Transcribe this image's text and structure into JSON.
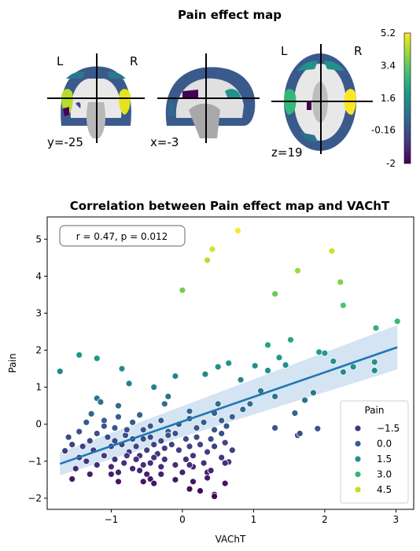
{
  "brain_panel": {
    "title": "Pain effect map",
    "orientation_left": "L",
    "orientation_right": "R",
    "coords": [
      "y=-25",
      "x=-3",
      "z=19"
    ],
    "colorbar": {
      "colormap": "viridis",
      "range": [
        -2,
        5.2
      ],
      "tick_labels": [
        "5.2",
        "3.4",
        "1.6",
        "-0.16",
        "-2"
      ],
      "tick_values": [
        5.2,
        3.4,
        1.6,
        -0.16,
        -2
      ]
    }
  },
  "chart_data": {
    "type": "scatter",
    "title": "Correlation between Pain effect map and VAChT",
    "xlabel": "VAChT",
    "ylabel": "Pain",
    "xlim": [
      -1.9,
      3.25
    ],
    "ylim": [
      -2.3,
      5.6
    ],
    "xticks": [
      -1,
      0,
      1,
      2,
      3
    ],
    "yticks": [
      -2,
      -1,
      0,
      1,
      2,
      3,
      4,
      5
    ],
    "annotation": "r = 0.47, p = 0.012",
    "legend": {
      "title": "Pain",
      "position": "lower-right",
      "entries": [
        {
          "label": "−1.5",
          "value": -1.5,
          "color": "#46327e"
        },
        {
          "label": "0.0",
          "value": 0.0,
          "color": "#365c8d"
        },
        {
          "label": "1.5",
          "value": 1.5,
          "color": "#21918c"
        },
        {
          "label": "3.0",
          "value": 3.0,
          "color": "#35b779"
        },
        {
          "label": "4.5",
          "value": 4.5,
          "color": "#bddf26"
        }
      ]
    },
    "hue_range": [
      -2,
      5.2
    ],
    "regression": {
      "x": [
        -1.72,
        3.02
      ],
      "y": [
        -1.07,
        2.08
      ],
      "ci_low": [
        -1.38,
        1.48
      ],
      "ci_high": [
        -0.76,
        2.68
      ],
      "color": "#1f77b4",
      "ci_color": "#c6dbef"
    },
    "points": [
      [
        -1.72,
        1.43
      ],
      [
        -1.45,
        1.87
      ],
      [
        -1.2,
        1.78
      ],
      [
        -0.85,
        1.5
      ],
      [
        -0.75,
        1.1
      ],
      [
        -0.4,
        1.0
      ],
      [
        -0.2,
        0.75
      ],
      [
        -0.1,
        1.3
      ],
      [
        0.0,
        3.62
      ],
      [
        0.35,
        4.43
      ],
      [
        0.42,
        4.73
      ],
      [
        0.78,
        5.23
      ],
      [
        1.3,
        3.52
      ],
      [
        1.62,
        4.15
      ],
      [
        2.1,
        4.68
      ],
      [
        2.22,
        3.84
      ],
      [
        2.26,
        3.21
      ],
      [
        1.2,
        2.14
      ],
      [
        1.52,
        2.28
      ],
      [
        1.36,
        1.8
      ],
      [
        1.45,
        1.6
      ],
      [
        1.92,
        1.95
      ],
      [
        2.0,
        1.92
      ],
      [
        2.12,
        1.7
      ],
      [
        2.7,
        1.68
      ],
      [
        2.72,
        2.6
      ],
      [
        3.02,
        2.78
      ],
      [
        2.26,
        1.41
      ],
      [
        2.4,
        1.55
      ],
      [
        2.7,
        1.45
      ],
      [
        0.32,
        1.35
      ],
      [
        0.65,
        1.65
      ],
      [
        1.02,
        1.58
      ],
      [
        1.2,
        1.45
      ],
      [
        0.5,
        1.55
      ],
      [
        0.82,
        1.2
      ],
      [
        1.1,
        0.9
      ],
      [
        1.3,
        0.75
      ],
      [
        1.72,
        0.65
      ],
      [
        1.84,
        0.85
      ],
      [
        0.95,
        0.55
      ],
      [
        0.85,
        0.4
      ],
      [
        -1.35,
        0.05
      ],
      [
        -1.28,
        0.28
      ],
      [
        -1.1,
        0.1
      ],
      [
        -0.95,
        -0.1
      ],
      [
        -0.9,
        0.2
      ],
      [
        -0.7,
        0.05
      ],
      [
        -0.6,
        0.25
      ],
      [
        -0.55,
        -0.15
      ],
      [
        -0.45,
        -0.05
      ],
      [
        -0.3,
        0.1
      ],
      [
        -0.2,
        -0.2
      ],
      [
        -0.05,
        0.0
      ],
      [
        0.1,
        0.15
      ],
      [
        0.2,
        -0.1
      ],
      [
        0.3,
        0.05
      ],
      [
        0.45,
        0.3
      ],
      [
        0.55,
        0.1
      ],
      [
        0.62,
        -0.05
      ],
      [
        0.7,
        0.2
      ],
      [
        0.55,
        -0.25
      ],
      [
        1.3,
        -0.1
      ],
      [
        1.58,
        0.3
      ],
      [
        1.62,
        -0.3
      ],
      [
        1.9,
        -0.12
      ],
      [
        1.65,
        -0.25
      ],
      [
        -1.2,
        0.7
      ],
      [
        -1.15,
        0.6
      ],
      [
        -0.9,
        0.5
      ],
      [
        -0.25,
        0.55
      ],
      [
        0.1,
        0.35
      ],
      [
        0.5,
        0.55
      ],
      [
        -1.6,
        -0.35
      ],
      [
        -1.55,
        -0.55
      ],
      [
        -1.4,
        -0.6
      ],
      [
        -1.3,
        -0.45
      ],
      [
        -1.25,
        -0.7
      ],
      [
        -1.2,
        -0.25
      ],
      [
        -1.05,
        -0.35
      ],
      [
        -1.0,
        -0.6
      ],
      [
        -0.95,
        -0.45
      ],
      [
        -0.85,
        -0.55
      ],
      [
        -0.8,
        -0.3
      ],
      [
        -0.75,
        -0.75
      ],
      [
        -0.7,
        -0.4
      ],
      [
        -0.65,
        -0.6
      ],
      [
        -0.6,
        -0.85
      ],
      [
        -0.55,
        -0.4
      ],
      [
        -0.5,
        -0.7
      ],
      [
        -0.45,
        -0.35
      ],
      [
        -0.4,
        -0.55
      ],
      [
        -0.35,
        -0.8
      ],
      [
        -0.3,
        -0.45
      ],
      [
        -0.25,
        -0.65
      ],
      [
        -0.2,
        -0.3
      ],
      [
        -0.15,
        -0.55
      ],
      [
        -0.1,
        -0.25
      ],
      [
        -0.05,
        -0.7
      ],
      [
        0.05,
        -0.4
      ],
      [
        0.1,
        -0.6
      ],
      [
        0.15,
        -0.85
      ],
      [
        0.2,
        -0.35
      ],
      [
        0.25,
        -0.55
      ],
      [
        0.35,
        -0.75
      ],
      [
        0.4,
        -0.4
      ],
      [
        0.45,
        -0.6
      ],
      [
        0.55,
        -0.9
      ],
      [
        0.6,
        -0.5
      ],
      [
        0.65,
        -1.02
      ],
      [
        0.7,
        -0.7
      ],
      [
        -1.5,
        -1.2
      ],
      [
        -1.45,
        -0.9
      ],
      [
        -1.35,
        -1.0
      ],
      [
        -1.2,
        -1.1
      ],
      [
        -1.1,
        -0.85
      ],
      [
        -1.0,
        -1.15
      ],
      [
        -0.95,
        -0.95
      ],
      [
        -0.9,
        -1.3
      ],
      [
        -0.82,
        -1.05
      ],
      [
        -0.78,
        -0.85
      ],
      [
        -0.7,
        -1.2
      ],
      [
        -0.65,
        -0.95
      ],
      [
        -0.55,
        -1.1
      ],
      [
        -0.5,
        -1.35
      ],
      [
        -0.45,
        -1.05
      ],
      [
        -0.4,
        -0.9
      ],
      [
        -0.3,
        -1.15
      ],
      [
        -0.25,
        -0.95
      ],
      [
        -0.1,
        -1.1
      ],
      [
        0.0,
        -1.3
      ],
      [
        0.05,
        -0.95
      ],
      [
        0.15,
        -1.15
      ],
      [
        0.3,
        -1.05
      ],
      [
        0.35,
        -1.3
      ],
      [
        0.6,
        -1.05
      ],
      [
        -1.45,
        -0.2
      ],
      [
        -1.65,
        -0.72
      ],
      [
        -1.1,
        -0.05
      ],
      [
        -0.78,
        -0.15
      ],
      [
        0.45,
        -0.15
      ],
      [
        -1.55,
        -1.48
      ],
      [
        -1.3,
        -1.35
      ],
      [
        -1.0,
        -1.35
      ],
      [
        -0.9,
        -1.55
      ],
      [
        -0.6,
        -1.25
      ],
      [
        -0.55,
        -1.55
      ],
      [
        -0.45,
        -1.48
      ],
      [
        -0.4,
        -1.6
      ],
      [
        -0.3,
        -1.35
      ],
      [
        -0.1,
        -1.5
      ],
      [
        0.1,
        -1.75
      ],
      [
        0.25,
        -1.8
      ],
      [
        0.45,
        -1.9
      ],
      [
        0.6,
        -1.6
      ],
      [
        0.1,
        -1.1
      ],
      [
        0.35,
        -1.45
      ],
      [
        0.15,
        -1.55
      ],
      [
        0.4,
        -1.25
      ],
      [
        0.45,
        -1.95
      ]
    ]
  }
}
